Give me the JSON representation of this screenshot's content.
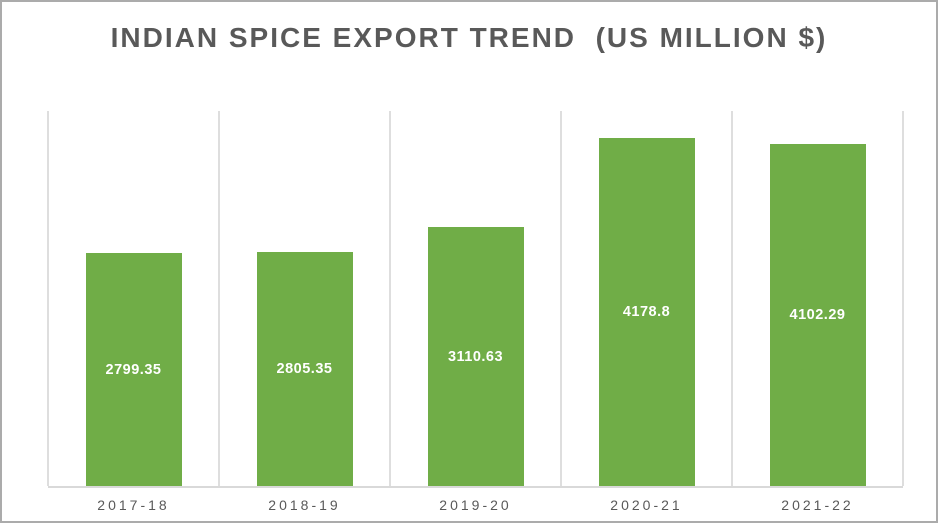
{
  "chart_data": {
    "type": "bar",
    "title": "INDIAN SPICE EXPORT TREND  (US MILLION $)",
    "categories": [
      "2017-18",
      "2018-19",
      "2019-20",
      "2020-21",
      "2021-22"
    ],
    "values": [
      2799.35,
      2805.35,
      3110.63,
      4178.8,
      4102.29
    ],
    "value_labels": [
      "2799.35",
      "2805.35",
      "3110.63",
      "4178.8",
      "4102.29"
    ],
    "xlabel": "",
    "ylabel": "",
    "ylim": [
      0,
      4500
    ],
    "grid": "vertical gridlines at category boundaries, no horizontal gridlines, no y-axis tick labels",
    "legend": "none",
    "data_label_position": "center of bar"
  },
  "colors": {
    "bar_fill": "#70AD47",
    "bar_value_label": "#FFFFFF",
    "title_text": "#595959",
    "axis_text": "#595959",
    "gridline": "#DEDEDE",
    "axis_line": "#D9D9D9",
    "frame_border": "#ABABAB",
    "background": "#FFFFFF"
  }
}
